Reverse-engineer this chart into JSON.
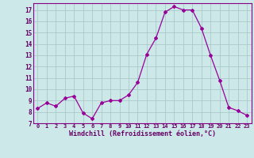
{
  "x": [
    0,
    1,
    2,
    3,
    4,
    5,
    6,
    7,
    8,
    9,
    10,
    11,
    12,
    13,
    14,
    15,
    16,
    17,
    18,
    19,
    20,
    21,
    22,
    23
  ],
  "y": [
    8.3,
    8.8,
    8.5,
    9.2,
    9.4,
    7.9,
    7.4,
    8.8,
    9.0,
    9.0,
    9.5,
    10.6,
    13.1,
    14.5,
    16.8,
    17.3,
    17.0,
    17.0,
    15.4,
    13.0,
    10.8,
    8.4,
    8.1,
    7.7
  ],
  "line_color": "#990099",
  "marker": "D",
  "marker_size": 2,
  "bg_color": "#cce8e8",
  "grid_color": "#aacaca",
  "xlabel": "Windchill (Refroidissement éolien,°C)",
  "xlabel_color": "#660066",
  "tick_color": "#660066",
  "ylabel_ticks": [
    7,
    8,
    9,
    10,
    11,
    12,
    13,
    14,
    15,
    16,
    17
  ],
  "xlim": [
    -0.5,
    23.5
  ],
  "ylim": [
    7,
    17.6
  ],
  "spine_color": "#880088"
}
